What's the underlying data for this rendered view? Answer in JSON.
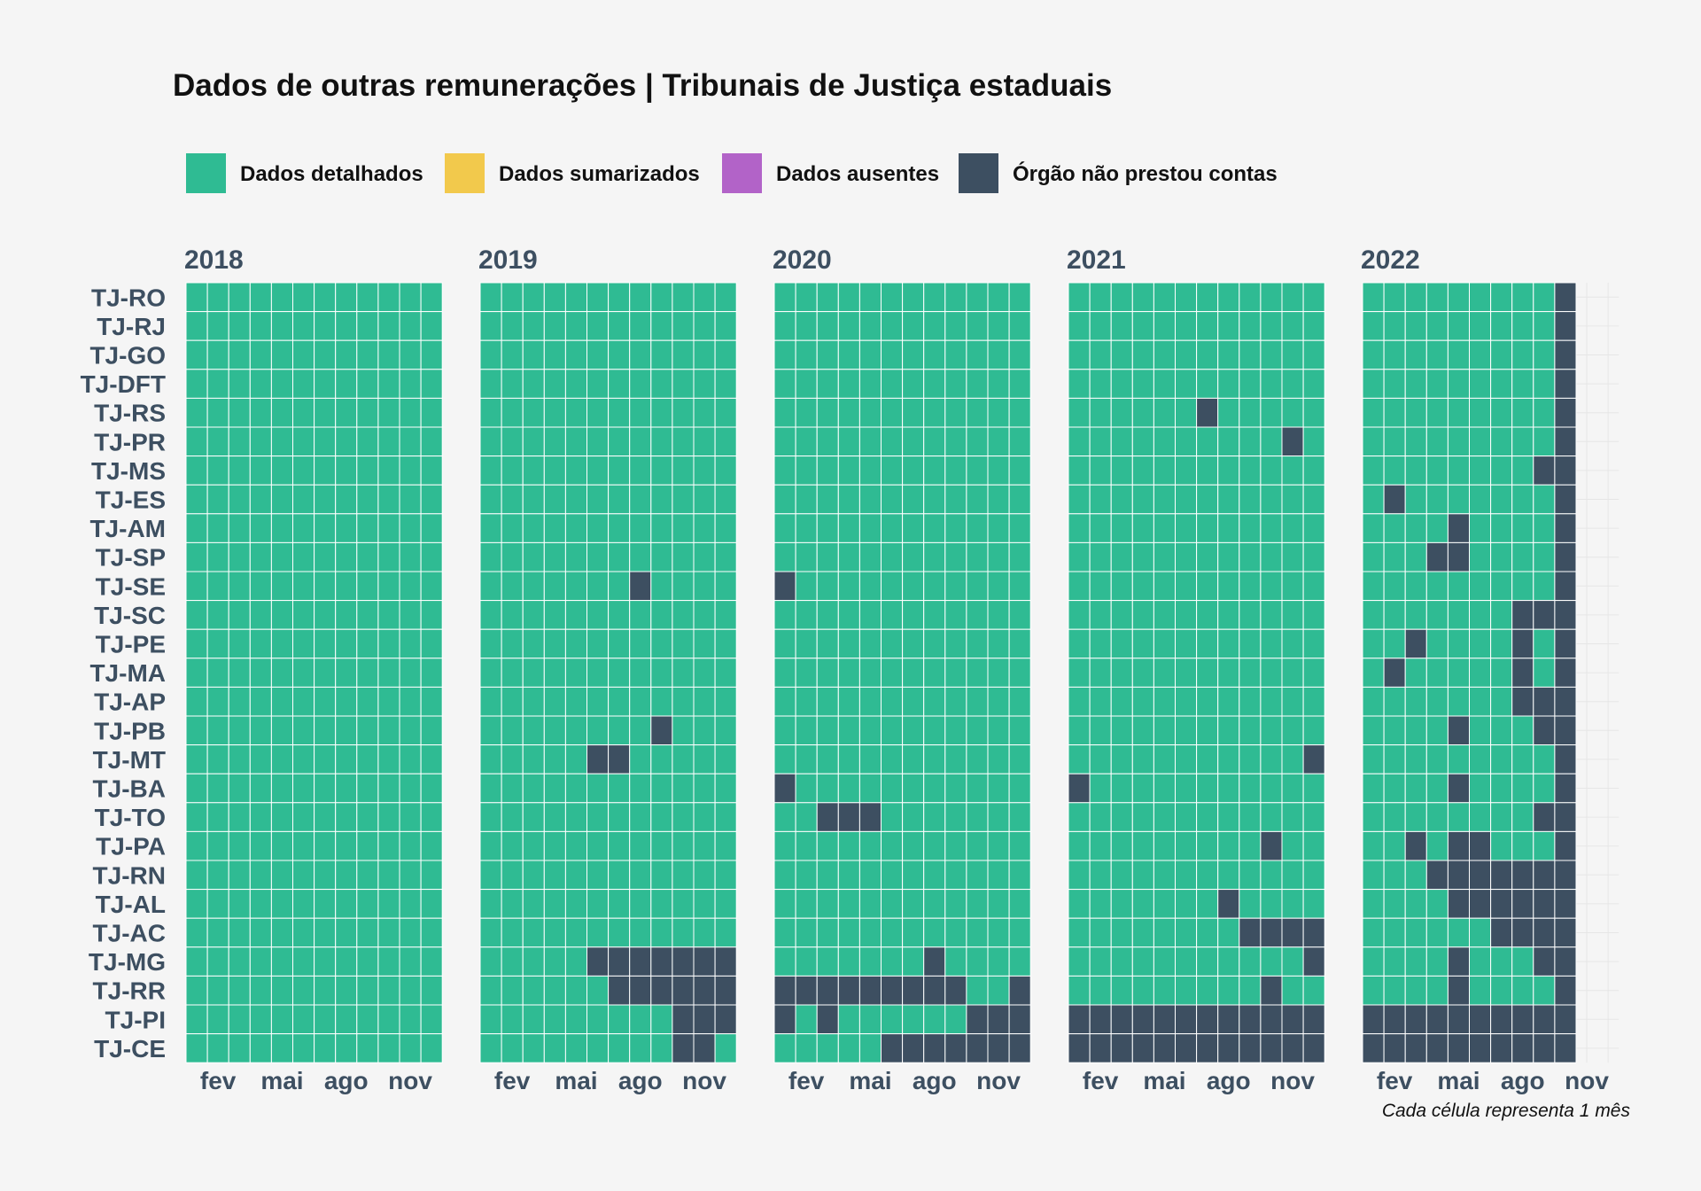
{
  "chart_data": {
    "type": "heatmap",
    "title": "Dados de outras remunerações | Tribunais de Justiça estaduais",
    "caption": "Cada célula representa 1 mês",
    "legend_position": "top",
    "categories": [
      {
        "key": "D",
        "label": "Dados detalhados",
        "color": "#2fbb93"
      },
      {
        "key": "S",
        "label": "Dados sumarizados",
        "color": "#f2c94c"
      },
      {
        "key": "A",
        "label": "Dados ausentes",
        "color": "#b263c8"
      },
      {
        "key": "N",
        "label": "Órgão não prestou contas",
        "color": "#3d4f61"
      }
    ],
    "years": [
      "2018",
      "2019",
      "2020",
      "2021",
      "2022"
    ],
    "month_ticks": [
      {
        "month": 2,
        "label": "fev"
      },
      {
        "month": 5,
        "label": "mai"
      },
      {
        "month": 8,
        "label": "ago"
      },
      {
        "month": 11,
        "label": "nov"
      }
    ],
    "rows": [
      "TJ-RO",
      "TJ-RJ",
      "TJ-GO",
      "TJ-DFT",
      "TJ-RS",
      "TJ-PR",
      "TJ-MS",
      "TJ-ES",
      "TJ-AM",
      "TJ-SP",
      "TJ-SE",
      "TJ-SC",
      "TJ-PE",
      "TJ-MA",
      "TJ-AP",
      "TJ-PB",
      "TJ-MT",
      "TJ-BA",
      "TJ-TO",
      "TJ-PA",
      "TJ-RN",
      "TJ-AL",
      "TJ-AC",
      "TJ-MG",
      "TJ-RR",
      "TJ-PI",
      "TJ-CE"
    ],
    "status": {
      "2018": {},
      "2019": {
        "TJ-SE": {
          "N": [
            8
          ]
        },
        "TJ-PB": {
          "N": [
            9
          ]
        },
        "TJ-MT": {
          "N": [
            6,
            7
          ]
        },
        "TJ-MG": {
          "N": [
            6,
            7,
            8,
            9,
            10,
            11,
            12
          ]
        },
        "TJ-RR": {
          "N": [
            7,
            8,
            9,
            10,
            11,
            12
          ]
        },
        "TJ-PI": {
          "N": [
            10,
            11,
            12
          ]
        },
        "TJ-CE": {
          "N": [
            10,
            11
          ]
        }
      },
      "2020": {
        "TJ-SE": {
          "N": [
            1
          ]
        },
        "TJ-BA": {
          "N": [
            1
          ]
        },
        "TJ-TO": {
          "N": [
            3,
            4,
            5
          ]
        },
        "TJ-MG": {
          "N": [
            8
          ]
        },
        "TJ-RR": {
          "N": [
            1,
            2,
            3,
            4,
            5,
            6,
            7,
            8,
            9,
            12
          ]
        },
        "TJ-PI": {
          "N": [
            1,
            3,
            10,
            11,
            12
          ]
        },
        "TJ-CE": {
          "N": [
            6,
            7,
            8,
            9,
            10,
            11,
            12
          ]
        }
      },
      "2021": {
        "TJ-RS": {
          "N": [
            7
          ]
        },
        "TJ-PR": {
          "N": [
            11
          ]
        },
        "TJ-MT": {
          "N": [
            12
          ]
        },
        "TJ-BA": {
          "N": [
            1
          ]
        },
        "TJ-PA": {
          "N": [
            10
          ]
        },
        "TJ-AL": {
          "N": [
            8
          ]
        },
        "TJ-AC": {
          "N": [
            9,
            10,
            11,
            12
          ]
        },
        "TJ-MG": {
          "N": [
            12
          ]
        },
        "TJ-RR": {
          "N": [
            10
          ]
        },
        "TJ-PI": {
          "N": [
            1,
            2,
            3,
            4,
            5,
            6,
            7,
            8,
            9,
            10,
            11,
            12
          ]
        },
        "TJ-CE": {
          "N": [
            1,
            2,
            3,
            4,
            5,
            6,
            7,
            8,
            9,
            10,
            11,
            12
          ]
        }
      },
      "2022": {
        "TJ-RO": {
          "N": [
            10
          ]
        },
        "TJ-RJ": {
          "N": [
            10
          ]
        },
        "TJ-GO": {
          "N": [
            10
          ]
        },
        "TJ-DFT": {
          "N": [
            10
          ]
        },
        "TJ-RS": {
          "N": [
            10
          ]
        },
        "TJ-PR": {
          "N": [
            10
          ]
        },
        "TJ-MS": {
          "N": [
            9,
            10
          ]
        },
        "TJ-ES": {
          "N": [
            2,
            10
          ]
        },
        "TJ-AM": {
          "N": [
            5,
            10
          ]
        },
        "TJ-SP": {
          "N": [
            4,
            5,
            10
          ]
        },
        "TJ-SE": {
          "N": [
            10
          ]
        },
        "TJ-SC": {
          "N": [
            8,
            9,
            10
          ]
        },
        "TJ-PE": {
          "N": [
            3,
            8,
            10
          ]
        },
        "TJ-MA": {
          "N": [
            2,
            8,
            10
          ]
        },
        "TJ-AP": {
          "N": [
            8,
            9,
            10
          ]
        },
        "TJ-PB": {
          "N": [
            5,
            9,
            10
          ]
        },
        "TJ-MT": {
          "N": [
            10
          ]
        },
        "TJ-BA": {
          "N": [
            5,
            10
          ]
        },
        "TJ-TO": {
          "N": [
            9,
            10
          ]
        },
        "TJ-PA": {
          "N": [
            3,
            5,
            6,
            10
          ]
        },
        "TJ-RN": {
          "N": [
            4,
            5,
            6,
            7,
            8,
            9,
            10
          ]
        },
        "TJ-AL": {
          "N": [
            5,
            6,
            7,
            8,
            9,
            10
          ]
        },
        "TJ-AC": {
          "N": [
            7,
            8,
            9,
            10
          ]
        },
        "TJ-MG": {
          "N": [
            5,
            9,
            10
          ]
        },
        "TJ-RR": {
          "N": [
            5,
            10
          ]
        },
        "TJ-PI": {
          "N": [
            1,
            2,
            3,
            4,
            5,
            6,
            7,
            8,
            9,
            10
          ]
        },
        "TJ-CE": {
          "N": [
            1,
            2,
            3,
            4,
            5,
            6,
            7,
            8,
            9,
            10
          ]
        }
      }
    },
    "months_with_data": {
      "2018": 12,
      "2019": 12,
      "2020": 12,
      "2021": 12,
      "2022": 10
    }
  }
}
